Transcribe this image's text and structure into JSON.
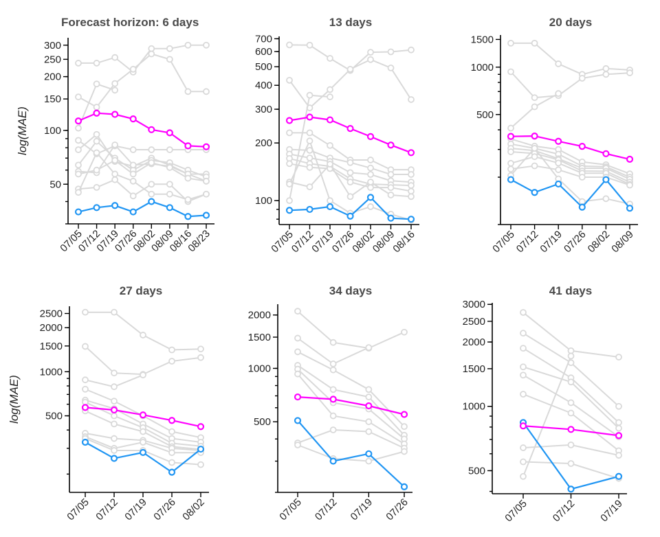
{
  "chart_data": [
    {
      "type": "line",
      "title": "Forecast horizon: 6 days",
      "ylabel": "log(MAE)",
      "yscale": "log",
      "ylim": [
        30,
        330
      ],
      "y_ticks": [
        50,
        100,
        150,
        200,
        250,
        300
      ],
      "categories": [
        "07/05",
        "07/12",
        "07/19",
        "07/26",
        "08/02",
        "08/09",
        "08/16",
        "08/23"
      ],
      "series": [
        {
          "color": "#ff00ff",
          "values": [
            113,
            125,
            123,
            116,
            101,
            97,
            82,
            81
          ]
        },
        {
          "color": "#2196f3",
          "values": [
            35,
            37,
            38,
            35,
            40,
            37,
            33,
            33.5
          ]
        },
        {
          "color": "#d9d9d9",
          "values": [
            238,
            238,
            256,
            212,
            287,
            287,
            300,
            300
          ]
        },
        {
          "color": "#d9d9d9",
          "values": [
            154,
            135,
            183,
            220,
            268,
            250,
            165,
            165
          ]
        },
        {
          "color": "#d9d9d9",
          "values": [
            103,
            182,
            168,
            null,
            null,
            null,
            null,
            null
          ]
        },
        {
          "color": "#d9d9d9",
          "values": [
            88,
            74,
            82,
            78,
            78,
            78,
            78,
            78
          ]
        },
        {
          "color": "#d9d9d9",
          "values": [
            78,
            95,
            67,
            63,
            70,
            64,
            57,
            57
          ]
        },
        {
          "color": "#d9d9d9",
          "values": [
            64,
            87,
            70,
            60,
            68,
            66,
            60,
            55
          ]
        },
        {
          "color": "#d9d9d9",
          "values": [
            59,
            58,
            83,
            64,
            65,
            63,
            57,
            52
          ]
        },
        {
          "color": "#d9d9d9",
          "values": [
            57,
            60,
            68,
            57,
            66,
            62,
            54,
            52
          ]
        },
        {
          "color": "#d9d9d9",
          "values": [
            47,
            48,
            53,
            43,
            50,
            50,
            40,
            44
          ]
        },
        {
          "color": "#d9d9d9",
          "values": [
            45,
            75,
            57,
            52,
            44,
            44,
            41,
            44
          ]
        }
      ]
    },
    {
      "type": "line",
      "title": "13 days",
      "ylabel": "",
      "yscale": "log",
      "ylim": [
        75,
        720
      ],
      "y_ticks": [
        100,
        200,
        300,
        400,
        500,
        600,
        700
      ],
      "categories": [
        "07/05",
        "07/12",
        "07/19",
        "07/26",
        "08/02",
        "08/09",
        "08/16"
      ],
      "series": [
        {
          "color": "#ff00ff",
          "values": [
            262,
            273,
            264,
            238,
            216,
            195,
            178
          ]
        },
        {
          "color": "#2196f3",
          "values": [
            89,
            90,
            93,
            83,
            104,
            81,
            80
          ]
        },
        {
          "color": "#d9d9d9",
          "values": [
            650,
            648,
            553,
            478,
            595,
            598,
            612
          ]
        },
        {
          "color": "#d9d9d9",
          "values": [
            425,
            305,
            380,
            485,
            545,
            493,
            337
          ]
        },
        {
          "color": "#d9d9d9",
          "values": [
            100,
            355,
            348,
            null,
            null,
            null,
            null
          ]
        },
        {
          "color": "#d9d9d9",
          "values": [
            226,
            226,
            194,
            163,
            163,
            145,
            145
          ]
        },
        {
          "color": "#d9d9d9",
          "values": [
            185,
            183,
            167,
            158,
            148,
            137,
            137
          ]
        },
        {
          "color": "#d9d9d9",
          "values": [
            175,
            167,
            160,
            140,
            137,
            127,
            125
          ]
        },
        {
          "color": "#d9d9d9",
          "values": [
            166,
            156,
            151,
            130,
            122,
            121,
            120
          ]
        },
        {
          "color": "#d9d9d9",
          "values": [
            156,
            149,
            147,
            125,
            117,
            117,
            112
          ]
        },
        {
          "color": "#d9d9d9",
          "values": [
            125,
            118,
            155,
            105,
            125,
            107,
            105
          ]
        },
        {
          "color": "#d9d9d9",
          "values": [
            122,
            205,
            100,
            86,
            93,
            85,
            79
          ]
        }
      ]
    },
    {
      "type": "line",
      "title": "20 days",
      "ylabel": "",
      "yscale": "log",
      "ylim": [
        100,
        1600
      ],
      "y_ticks": [
        500,
        1000,
        1500
      ],
      "categories": [
        "07/05",
        "07/12",
        "07/19",
        "07/26",
        "08/02",
        "08/09"
      ],
      "series": [
        {
          "color": "#ff00ff",
          "values": [
            363,
            365,
            338,
            314,
            282,
            260
          ]
        },
        {
          "color": "#2196f3",
          "values": [
            193,
            160,
            181,
            129,
            193,
            127
          ]
        },
        {
          "color": "#d9d9d9",
          "values": [
            1420,
            1420,
            1050,
            900,
            980,
            960
          ]
        },
        {
          "color": "#d9d9d9",
          "values": [
            935,
            640,
            660,
            850,
            900,
            920
          ]
        },
        {
          "color": "#d9d9d9",
          "values": [
            410,
            560,
            680,
            null,
            null,
            null
          ]
        },
        {
          "color": "#d9d9d9",
          "values": [
            350,
            315,
            300,
            250,
            240,
            210
          ]
        },
        {
          "color": "#d9d9d9",
          "values": [
            325,
            305,
            280,
            235,
            233,
            200
          ]
        },
        {
          "color": "#d9d9d9",
          "values": [
            305,
            295,
            262,
            228,
            228,
            194
          ]
        },
        {
          "color": "#d9d9d9",
          "values": [
            290,
            283,
            258,
            219,
            218,
            186
          ]
        },
        {
          "color": "#d9d9d9",
          "values": [
            245,
            270,
            246,
            212,
            212,
            180
          ]
        },
        {
          "color": "#d9d9d9",
          "values": [
            225,
            236,
            223,
            200,
            200,
            178
          ]
        },
        {
          "color": "#d9d9d9",
          "values": [
            205,
            305,
            195,
            140,
            146,
            135
          ]
        }
      ]
    },
    {
      "type": "line",
      "title": "27 days",
      "ylabel": "log(MAE)",
      "yscale": "log",
      "ylim": [
        150,
        2800
      ],
      "y_ticks": [
        500,
        1000,
        1500,
        2000,
        2500
      ],
      "categories": [
        "07/05",
        "07/12",
        "07/19",
        "07/26",
        "08/02"
      ],
      "series": [
        {
          "color": "#ff00ff",
          "values": [
            570,
            548,
            507,
            465,
            422
          ]
        },
        {
          "color": "#2196f3",
          "values": [
            330,
            256,
            281,
            206,
            296
          ]
        },
        {
          "color": "#d9d9d9",
          "values": [
            2550,
            2550,
            1780,
            1410,
            1430
          ]
        },
        {
          "color": "#d9d9d9",
          "values": [
            1490,
            980,
            960,
            1180,
            1250
          ]
        },
        {
          "color": "#d9d9d9",
          "values": [
            880,
            790,
            950,
            null,
            null
          ]
        },
        {
          "color": "#d9d9d9",
          "values": [
            760,
            630,
            500,
            390,
            355
          ]
        },
        {
          "color": "#d9d9d9",
          "values": [
            640,
            560,
            440,
            350,
            330
          ]
        },
        {
          "color": "#d9d9d9",
          "values": [
            620,
            500,
            415,
            325,
            310
          ]
        },
        {
          "color": "#d9d9d9",
          "values": [
            540,
            440,
            390,
            308,
            295
          ]
        },
        {
          "color": "#d9d9d9",
          "values": [
            380,
            350,
            340,
            300,
            290
          ]
        },
        {
          "color": "#d9d9d9",
          "values": [
            360,
            300,
            330,
            280,
            280
          ]
        },
        {
          "color": "#d9d9d9",
          "values": [
            350,
            290,
            290,
            240,
            232
          ]
        }
      ]
    },
    {
      "type": "line",
      "title": "34 days",
      "ylabel": "",
      "yscale": "log",
      "ylim": [
        200,
        2300
      ],
      "y_ticks": [
        500,
        1000,
        1500,
        2000
      ],
      "categories": [
        "07/05",
        "07/12",
        "07/19",
        "07/26"
      ],
      "series": [
        {
          "color": "#ff00ff",
          "values": [
            690,
            670,
            615,
            550
          ]
        },
        {
          "color": "#2196f3",
          "values": [
            508,
            300,
            330,
            215
          ]
        },
        {
          "color": "#d9d9d9",
          "values": [
            2100,
            1400,
            1300,
            1600
          ]
        },
        {
          "color": "#d9d9d9",
          "values": [
            1480,
            1060,
            1310,
            null
          ]
        },
        {
          "color": "#d9d9d9",
          "values": [
            1240,
            980,
            760,
            470
          ]
        },
        {
          "color": "#d9d9d9",
          "values": [
            1040,
            760,
            690,
            420
          ]
        },
        {
          "color": "#d9d9d9",
          "values": [
            990,
            640,
            590,
            400
          ]
        },
        {
          "color": "#d9d9d9",
          "values": [
            930,
            540,
            500,
            375
          ]
        },
        {
          "color": "#d9d9d9",
          "values": [
            380,
            450,
            440,
            355
          ]
        },
        {
          "color": "#d9d9d9",
          "values": [
            370,
            310,
            300,
            340
          ]
        }
      ]
    },
    {
      "type": "line",
      "title": "41 days",
      "ylabel": "",
      "yscale": "log",
      "ylim": [
        390,
        3050
      ],
      "y_ticks": [
        500,
        1000,
        1500,
        2000,
        2500,
        3000
      ],
      "categories": [
        "07/05",
        "07/12",
        "07/19"
      ],
      "series": [
        {
          "color": "#ff00ff",
          "values": [
            810,
            780,
            730
          ]
        },
        {
          "color": "#2196f3",
          "values": [
            840,
            410,
            470
          ]
        },
        {
          "color": "#d9d9d9",
          "values": [
            2750,
            1820,
            1700
          ]
        },
        {
          "color": "#d9d9d9",
          "values": [
            2200,
            1600,
            1000
          ]
        },
        {
          "color": "#d9d9d9",
          "values": [
            1870,
            1360,
            840
          ]
        },
        {
          "color": "#d9d9d9",
          "values": [
            1530,
            1300,
            790
          ]
        },
        {
          "color": "#d9d9d9",
          "values": [
            1400,
            1040,
            720
          ]
        },
        {
          "color": "#d9d9d9",
          "values": [
            1140,
            930,
            620
          ]
        },
        {
          "color": "#d9d9d9",
          "values": [
            640,
            660,
            590
          ]
        },
        {
          "color": "#d9d9d9",
          "values": [
            550,
            540,
            460
          ]
        },
        {
          "color": "#d9d9d9",
          "values": [
            470,
            1720,
            null
          ]
        }
      ]
    }
  ]
}
